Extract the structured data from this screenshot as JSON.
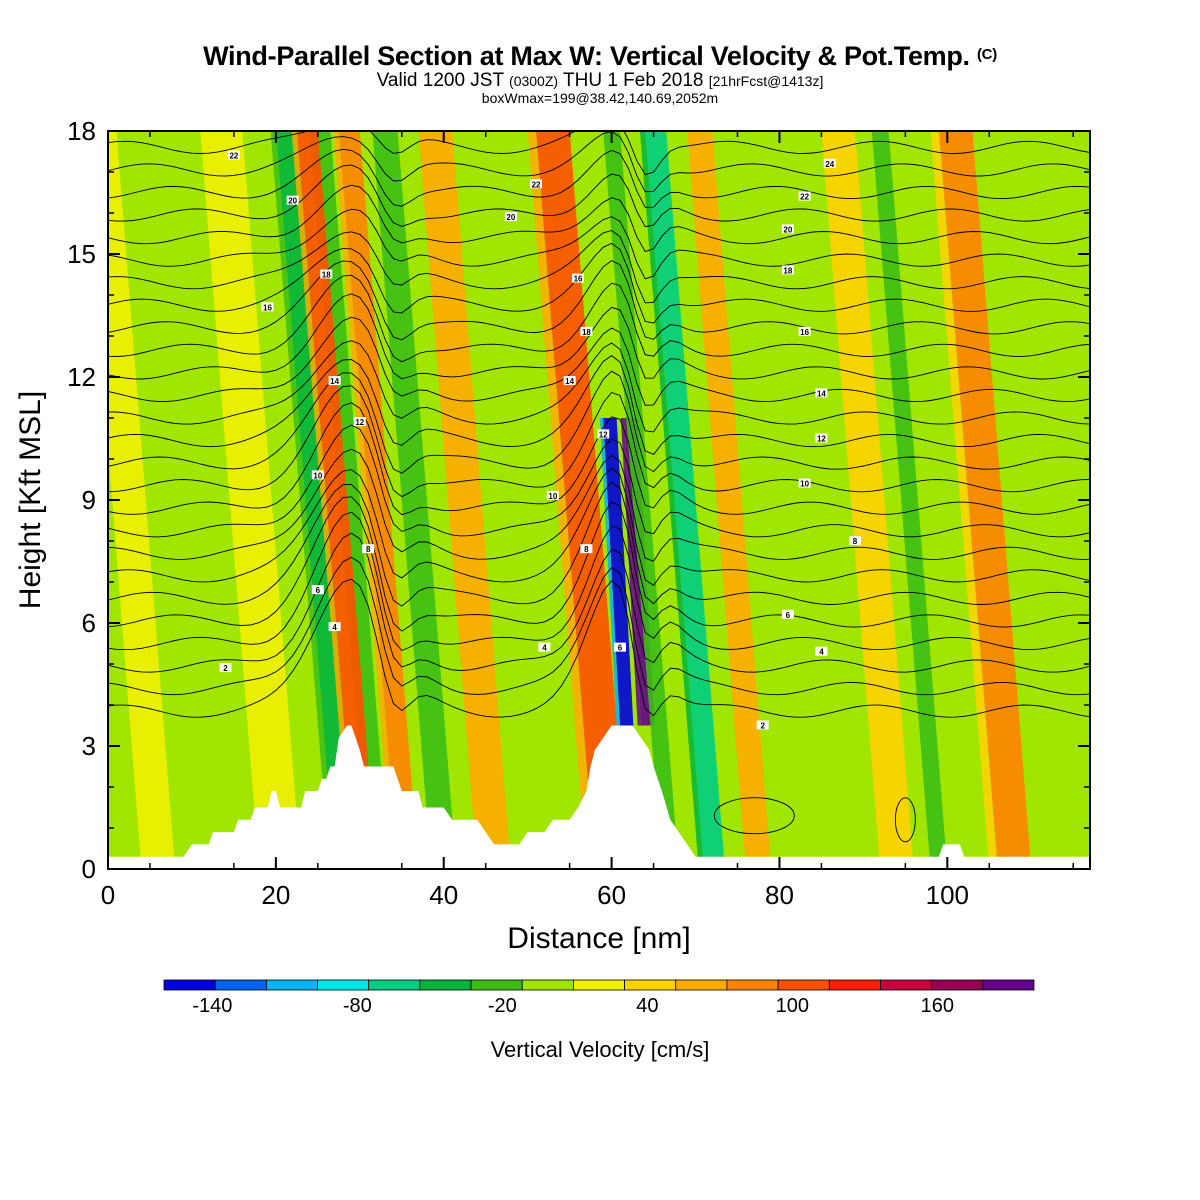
{
  "header": {
    "title": "Wind-Parallel Section at Max W: Vertical Velocity & Pot.Temp.",
    "title_tag": "(C)",
    "valid_prefix": "Valid 1200 JST",
    "valid_z": "(0300Z)",
    "valid_date": "THU 1 Feb 2018",
    "valid_fcst": "[21hrFcst@1413z]",
    "boxline": "boxWmax=199@38.42,140.69,2052m"
  },
  "chart_data": {
    "type": "heatmap",
    "xlabel": "Distance [nm]",
    "ylabel": "Height [Kft MSL]",
    "xlim": [
      0,
      117
    ],
    "ylim": [
      0,
      18
    ],
    "x_ticks": [
      "0",
      "20",
      "40",
      "60",
      "80",
      "100"
    ],
    "y_ticks": [
      "0",
      "3",
      "6",
      "9",
      "12",
      "15",
      "18"
    ],
    "colorbar": {
      "title": "Vertical Velocity [cm/s]",
      "labels": [
        "-140",
        "-80",
        "-20",
        "40",
        "100",
        "160"
      ],
      "label_values": [
        -140,
        -80,
        -20,
        40,
        100,
        160
      ],
      "min": -160,
      "max": 200,
      "step": 20,
      "colors": [
        "#0000dc",
        "#0064f0",
        "#00b4f5",
        "#00e6e6",
        "#00cd82",
        "#00b43c",
        "#3cbe14",
        "#a0e600",
        "#f0f000",
        "#ffd200",
        "#ffaa00",
        "#ff8200",
        "#ff5000",
        "#ff1e00",
        "#c8003c",
        "#960050",
        "#64008c"
      ]
    },
    "velocity_bands": [
      {
        "x": 4,
        "w": 4,
        "value": 10
      },
      {
        "x": 18,
        "w": 5,
        "value": 15
      },
      {
        "x": 27,
        "w": 2.5,
        "value": -60
      },
      {
        "x": 31,
        "w": 2.5,
        "value": -40
      },
      {
        "x": 29.5,
        "w": 2.5,
        "value": 80
      },
      {
        "x": 34.5,
        "w": 2.5,
        "value": 75
      },
      {
        "x": 38.5,
        "w": 3,
        "value": -30
      },
      {
        "x": 44,
        "w": 4,
        "value": 50
      },
      {
        "x": 51,
        "w": 3,
        "value": -20
      },
      {
        "x": 58,
        "w": 4,
        "value": 80
      },
      {
        "x": 61,
        "w": 1.6,
        "value": -150
      },
      {
        "x": 63.5,
        "w": 1.6,
        "value": 199
      },
      {
        "x": 66,
        "w": 2,
        "value": -40
      },
      {
        "x": 71,
        "w": 2.5,
        "value": -80
      },
      {
        "x": 76,
        "w": 3,
        "value": 40
      },
      {
        "x": 84,
        "w": 3,
        "value": -10
      },
      {
        "x": 92,
        "w": 4,
        "value": 30
      },
      {
        "x": 98,
        "w": 2,
        "value": -30
      },
      {
        "x": 106,
        "w": 4,
        "value": 60
      },
      {
        "x": 113,
        "w": 3,
        "value": -20
      }
    ],
    "terrain": [
      [
        0,
        0.3
      ],
      [
        6,
        0.3
      ],
      [
        9,
        0.3
      ],
      [
        10,
        0.6
      ],
      [
        12,
        0.6
      ],
      [
        12.5,
        0.9
      ],
      [
        15,
        0.9
      ],
      [
        15.5,
        1.2
      ],
      [
        17,
        1.2
      ],
      [
        17.5,
        1.5
      ],
      [
        19,
        1.5
      ],
      [
        19.5,
        1.9
      ],
      [
        20,
        1.9
      ],
      [
        20.5,
        1.5
      ],
      [
        23,
        1.5
      ],
      [
        23.5,
        1.9
      ],
      [
        25,
        1.9
      ],
      [
        25.5,
        2.2
      ],
      [
        26,
        2.2
      ],
      [
        26.5,
        2.5
      ],
      [
        27,
        2.5
      ],
      [
        27.5,
        3.2
      ],
      [
        28.5,
        3.5
      ],
      [
        29,
        3.5
      ],
      [
        29.5,
        3.2
      ],
      [
        30,
        2.9
      ],
      [
        30.5,
        2.5
      ],
      [
        34,
        2.5
      ],
      [
        34.5,
        2.2
      ],
      [
        35,
        1.9
      ],
      [
        36,
        1.9
      ],
      [
        37,
        1.9
      ],
      [
        37.5,
        1.5
      ],
      [
        40,
        1.5
      ],
      [
        41,
        1.2
      ],
      [
        44,
        1.2
      ],
      [
        45,
        0.9
      ],
      [
        46,
        0.6
      ],
      [
        49,
        0.6
      ],
      [
        50,
        0.9
      ],
      [
        52,
        0.9
      ],
      [
        53,
        1.2
      ],
      [
        55,
        1.2
      ],
      [
        56,
        1.5
      ],
      [
        57,
        1.9
      ],
      [
        57.5,
        2.5
      ],
      [
        58,
        2.9
      ],
      [
        59,
        3.2
      ],
      [
        60,
        3.5
      ],
      [
        62.5,
        3.5
      ],
      [
        63.5,
        3.2
      ],
      [
        64.5,
        2.9
      ],
      [
        65,
        2.5
      ],
      [
        66,
        1.9
      ],
      [
        67,
        1.2
      ],
      [
        68,
        0.9
      ],
      [
        69,
        0.6
      ],
      [
        70,
        0.3
      ],
      [
        85,
        0.3
      ],
      [
        99,
        0.3
      ],
      [
        99.5,
        0.6
      ],
      [
        101.5,
        0.6
      ],
      [
        102,
        0.3
      ],
      [
        117,
        0.3
      ]
    ],
    "theta_contour_labels": [
      {
        "x": 14,
        "y": 4.9,
        "label": "2"
      },
      {
        "x": 27,
        "y": 5.9,
        "label": "4"
      },
      {
        "x": 25,
        "y": 6.8,
        "label": "6"
      },
      {
        "x": 31,
        "y": 7.8,
        "label": "8"
      },
      {
        "x": 25,
        "y": 9.6,
        "label": "10"
      },
      {
        "x": 30,
        "y": 10.9,
        "label": "12"
      },
      {
        "x": 27,
        "y": 11.9,
        "label": "14"
      },
      {
        "x": 19,
        "y": 13.7,
        "label": "16"
      },
      {
        "x": 26,
        "y": 14.5,
        "label": "18"
      },
      {
        "x": 22,
        "y": 16.3,
        "label": "20"
      },
      {
        "x": 15,
        "y": 17.4,
        "label": "22"
      },
      {
        "x": 52,
        "y": 5.4,
        "label": "4"
      },
      {
        "x": 57,
        "y": 7.8,
        "label": "8"
      },
      {
        "x": 53,
        "y": 9.1,
        "label": "10"
      },
      {
        "x": 59,
        "y": 10.6,
        "label": "12"
      },
      {
        "x": 55,
        "y": 11.9,
        "label": "14"
      },
      {
        "x": 56,
        "y": 14.4,
        "label": "16"
      },
      {
        "x": 57,
        "y": 13.1,
        "label": "18"
      },
      {
        "x": 48,
        "y": 15.9,
        "label": "20"
      },
      {
        "x": 51,
        "y": 16.7,
        "label": "22"
      },
      {
        "x": 61,
        "y": 5.4,
        "label": "6"
      },
      {
        "x": 78,
        "y": 3.5,
        "label": "2"
      },
      {
        "x": 85,
        "y": 5.3,
        "label": "4"
      },
      {
        "x": 81,
        "y": 6.2,
        "label": "6"
      },
      {
        "x": 89,
        "y": 8.0,
        "label": "8"
      },
      {
        "x": 83,
        "y": 9.4,
        "label": "10"
      },
      {
        "x": 85,
        "y": 10.5,
        "label": "12"
      },
      {
        "x": 85,
        "y": 11.6,
        "label": "14"
      },
      {
        "x": 83,
        "y": 13.1,
        "label": "16"
      },
      {
        "x": 81,
        "y": 14.6,
        "label": "18"
      },
      {
        "x": 81,
        "y": 15.6,
        "label": "20"
      },
      {
        "x": 83,
        "y": 16.4,
        "label": "22"
      },
      {
        "x": 86,
        "y": 17.2,
        "label": "24"
      }
    ]
  }
}
